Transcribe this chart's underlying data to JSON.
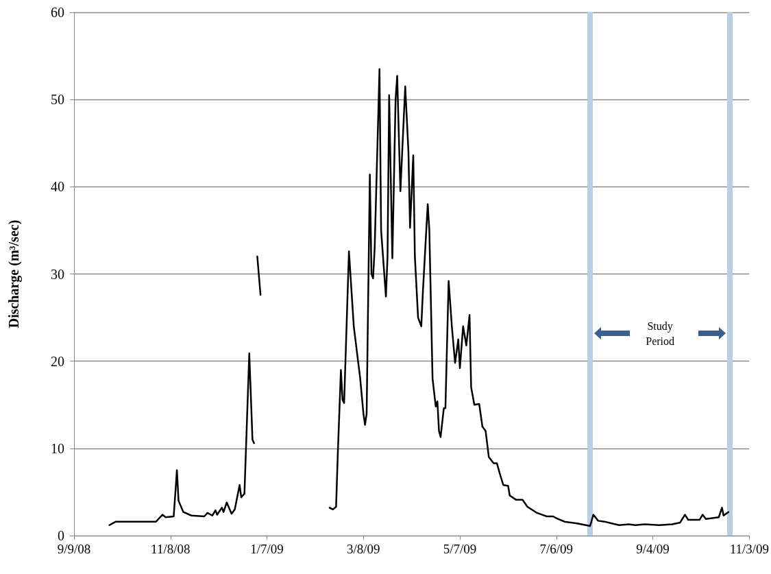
{
  "chart_data": {
    "type": "line",
    "ylabel": "Discharge (m³/sec)",
    "xlim": [
      "2008-09-09",
      "2009-11-03"
    ],
    "xticks": [
      {
        "value": "2008-09-09",
        "label": "9/9/08"
      },
      {
        "value": "2008-11-08",
        "label": "11/8/08"
      },
      {
        "value": "2009-01-07",
        "label": "1/7/09"
      },
      {
        "value": "2009-03-08",
        "label": "3/8/09"
      },
      {
        "value": "2009-05-07",
        "label": "5/7/09"
      },
      {
        "value": "2009-07-06",
        "label": "7/6/09"
      },
      {
        "value": "2009-09-04",
        "label": "9/4/09"
      },
      {
        "value": "2009-11-03",
        "label": "11/3/09"
      }
    ],
    "ylim": [
      0,
      60
    ],
    "yticks": [
      0,
      10,
      20,
      30,
      40,
      50,
      60
    ],
    "grid": "y",
    "marker": "none",
    "line_style": "solid",
    "x": [
      "2008-10-01",
      "2008-10-05",
      "2008-10-30",
      "2008-11-03",
      "2008-11-05",
      "2008-11-10",
      "2008-11-12",
      "2008-11-13",
      "2008-11-16",
      "2008-11-21",
      "2008-11-29",
      "2008-12-01",
      "2008-12-04",
      "2008-12-06",
      "2008-12-07",
      "2008-12-10",
      "2008-12-11",
      "2008-12-13",
      "2008-12-16",
      "2008-12-18",
      "2008-12-21",
      "2008-12-22",
      "2008-12-24",
      "2008-12-27",
      "2008-12-29",
      "2008-12-30",
      "2008-12-31",
      "2009-01-01",
      "2009-01-03",
      "2009-01-04",
      "2009-02-15",
      "2009-02-17",
      "2009-02-19",
      "2009-02-20",
      "2009-02-22",
      "2009-02-23",
      "2009-02-24",
      "2009-02-27",
      "2009-03-02",
      "2009-03-06",
      "2009-03-08",
      "2009-03-09",
      "2009-03-10",
      "2009-03-12",
      "2009-03-13",
      "2009-03-14",
      "2009-03-15",
      "2009-03-18",
      "2009-03-19",
      "2009-03-22",
      "2009-03-23",
      "2009-03-24",
      "2009-03-26",
      "2009-03-28",
      "2009-03-29",
      "2009-03-31",
      "2009-04-03",
      "2009-04-05",
      "2009-04-06",
      "2009-04-08",
      "2009-04-09",
      "2009-04-11",
      "2009-04-13",
      "2009-04-14",
      "2009-04-17",
      "2009-04-18",
      "2009-04-20",
      "2009-04-22",
      "2009-04-23",
      "2009-04-24",
      "2009-04-25",
      "2009-04-27",
      "2009-04-28",
      "2009-04-30",
      "2009-05-02",
      "2009-05-04",
      "2009-05-06",
      "2009-05-07",
      "2009-05-09",
      "2009-05-11",
      "2009-05-13",
      "2009-05-14",
      "2009-05-16",
      "2009-05-19",
      "2009-05-21",
      "2009-05-23",
      "2009-05-25",
      "2009-05-28",
      "2009-05-30",
      "2009-06-01",
      "2009-06-03",
      "2009-06-06",
      "2009-06-07",
      "2009-06-11",
      "2009-06-15",
      "2009-06-18",
      "2009-06-24",
      "2009-06-30",
      "2009-07-04",
      "2009-07-06",
      "2009-07-11",
      "2009-07-19",
      "2009-07-27",
      "2009-07-29",
      "2009-08-01",
      "2009-08-05",
      "2009-08-14",
      "2009-08-20",
      "2009-08-24",
      "2009-08-30",
      "2009-09-08",
      "2009-09-16",
      "2009-09-21",
      "2009-09-24",
      "2009-09-26",
      "2009-10-03",
      "2009-10-05",
      "2009-10-07",
      "2009-10-15",
      "2009-10-17",
      "2009-10-18",
      "2009-10-21"
    ],
    "series": [
      {
        "color": "#000000",
        "values": [
          1.2,
          1.6,
          1.6,
          2.4,
          2.1,
          2.2,
          7.5,
          4,
          2.7,
          2.3,
          2.2,
          2.6,
          2.3,
          2.9,
          2.4,
          3.2,
          2.7,
          3.8,
          2.5,
          3.0,
          5.8,
          4.4,
          4.8,
          20.9,
          11,
          10.6,
          null,
          32,
          27.6,
          null,
          3.2,
          3.0,
          3.3,
          9,
          19,
          15.6,
          15.2,
          32.6,
          24,
          18,
          14,
          12.7,
          14,
          41.4,
          30,
          29.5,
          33,
          53.5,
          35,
          27.4,
          32,
          50.5,
          31.8,
          50,
          52.7,
          39.5,
          51.5,
          44,
          35.3,
          43.6,
          32,
          25,
          24,
          28,
          38,
          35,
          18,
          14.8,
          15.4,
          12,
          11.3,
          14.6,
          14.6,
          29.2,
          24,
          19.8,
          22.5,
          19.2,
          24,
          21.8,
          25.3,
          17,
          15,
          15.1,
          12.5,
          12,
          9,
          8.3,
          8.3,
          7,
          5.8,
          5.7,
          4.6,
          4.1,
          4.1,
          3.3,
          2.6,
          2.2,
          2.2,
          2.0,
          1.6,
          1.4,
          1.1,
          2.4,
          1.7,
          1.6,
          1.2,
          1.3,
          1.2,
          1.3,
          1.2,
          1.3,
          1.5,
          2.4,
          1.8,
          1.8,
          2.4,
          1.9,
          2.1,
          3.2,
          2.3,
          2.7
        ]
      }
    ],
    "ref_lines": [
      {
        "axis": "x",
        "value": "2009-07-27",
        "color": "#b9cde5"
      },
      {
        "axis": "x",
        "value": "2009-10-22",
        "color": "#b9cde5"
      }
    ],
    "annotations": [
      "Study Period"
    ]
  }
}
